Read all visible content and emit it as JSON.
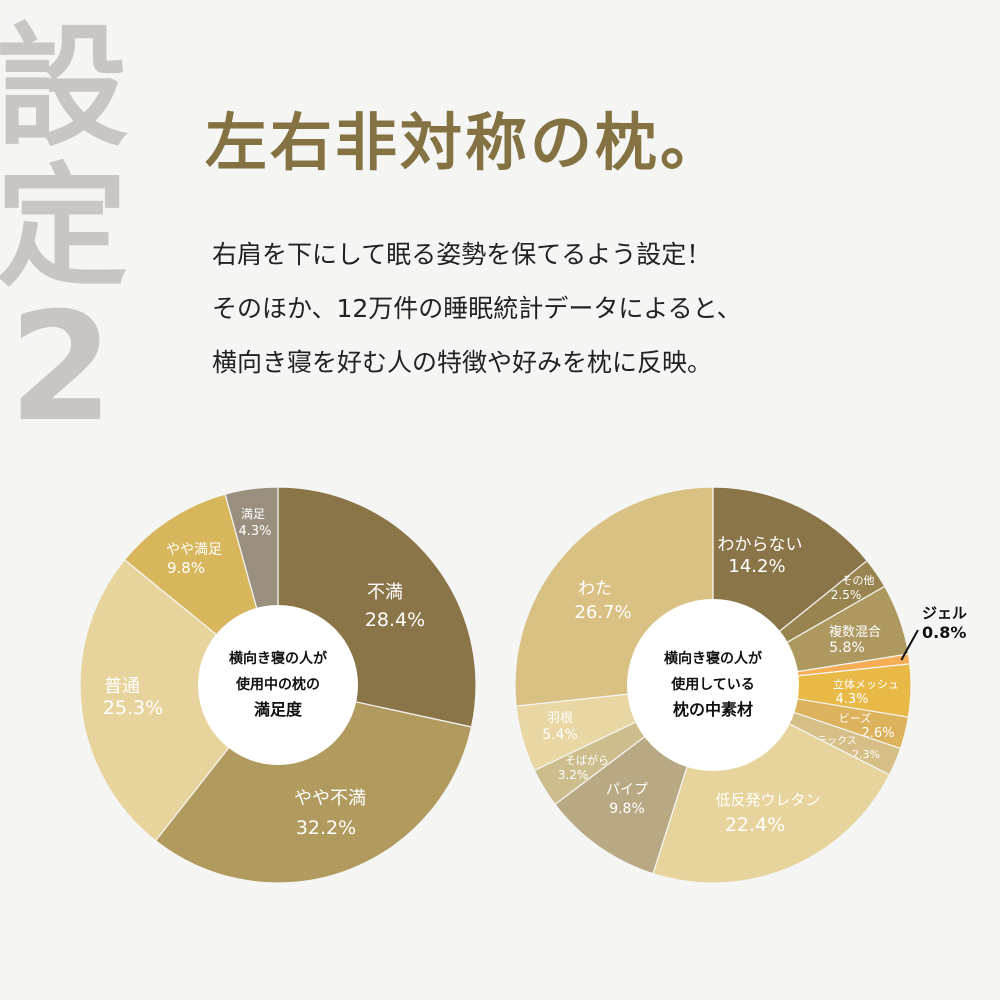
{
  "side_label": {
    "line1": "設",
    "line2": "定",
    "line3": "2"
  },
  "title": "左右非対称の枕。",
  "description": [
    "右肩を下にして眠る姿勢を保てるよう設定！",
    "そのほか、12万件の睡眠統計データによると、",
    "横向き寝を好む人の特徴や好みを枕に反映。"
  ],
  "chart_data": [
    {
      "type": "pie",
      "title": [
        "横向き寝の人が",
        "使用中の枕の",
        "満足度"
      ],
      "categories": [
        "不満",
        "やや不満",
        "普通",
        "やや満足",
        "満足"
      ],
      "values": [
        28.4,
        32.2,
        25.3,
        9.8,
        4.3
      ],
      "unit": "%",
      "colors": [
        "#8a7548",
        "#b09a5e",
        "#e6d49c",
        "#d7b65c",
        "#9a8f7f"
      ]
    },
    {
      "type": "pie",
      "title": [
        "横向き寝の人が",
        "使用している",
        "枕の中素材"
      ],
      "categories": [
        "わからない",
        "その他",
        "複数混合",
        "ジェル",
        "立体メッシュ",
        "ビーズ",
        "ラテックス",
        "低反発ウレタン",
        "パイプ",
        "そばがら",
        "羽根",
        "わた"
      ],
      "values": [
        14.2,
        2.5,
        5.8,
        0.8,
        4.3,
        2.6,
        2.3,
        22.4,
        9.8,
        3.2,
        5.4,
        26.7
      ],
      "unit": "%",
      "colors": [
        "#8a7548",
        "#98844f",
        "#ad9860",
        "#f6ae55",
        "#e9b948",
        "#dcb35c",
        "#d6bf86",
        "#e6d49c",
        "#b8a984",
        "#cdbd8c",
        "#e8d7a2",
        "#d9c184"
      ]
    }
  ]
}
